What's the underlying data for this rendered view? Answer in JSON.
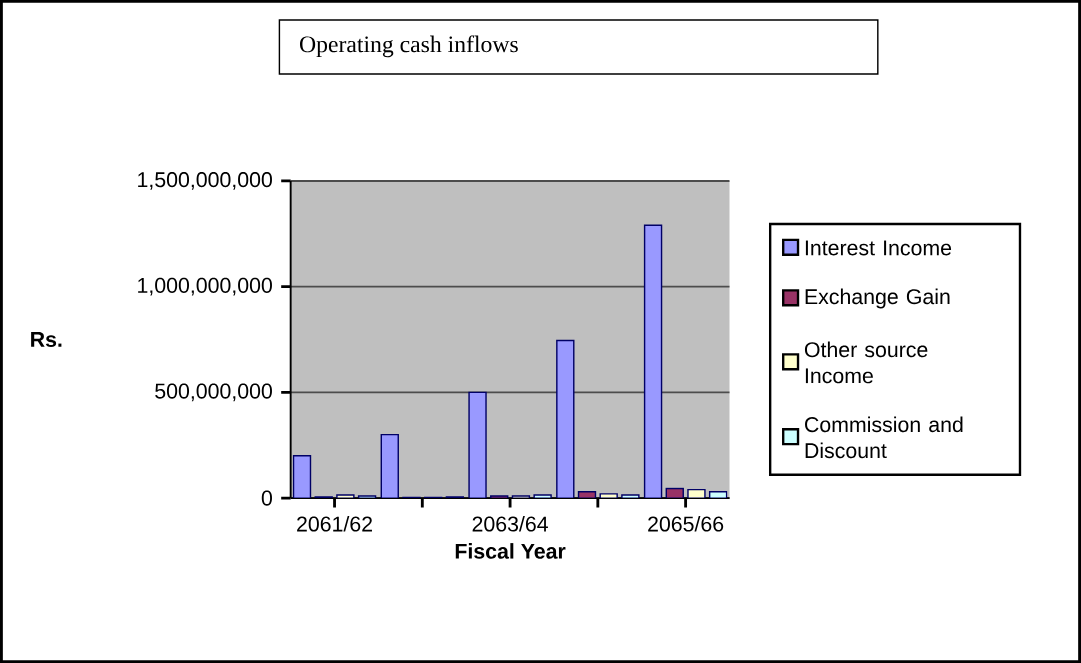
{
  "chart_data": {
    "type": "bar",
    "title": "Operating cash inflows",
    "xlabel": "Fiscal Year",
    "ylabel": "Rs.",
    "categories": [
      "2061/62",
      null,
      "2063/64",
      null,
      "2065/66"
    ],
    "series": [
      {
        "name": "Interest Income",
        "color": "#9999ff",
        "values": [
          200000000,
          300000000,
          500000000,
          745000000,
          1290000000
        ]
      },
      {
        "name": "Exchange Gain",
        "color": "#993366",
        "values": [
          5000000,
          3000000,
          10000000,
          30000000,
          45000000
        ]
      },
      {
        "name": "Other source Income",
        "color": "#ffffcc",
        "values": [
          15000000,
          3000000,
          10000000,
          20000000,
          40000000
        ]
      },
      {
        "name": "Commission and Discount",
        "color": "#ccffff",
        "values": [
          10000000,
          5000000,
          15000000,
          15000000,
          30000000
        ]
      }
    ],
    "ylim": [
      0,
      1500000000
    ],
    "yticks": [
      0,
      {
        "value": 500000000,
        "label": "500,000,000"
      },
      {
        "value": 1000000000,
        "label": "1,000,000,000"
      },
      {
        "value": 1500000000,
        "label": "1,500,000,000"
      }
    ],
    "grid": "y",
    "legend": "right"
  }
}
